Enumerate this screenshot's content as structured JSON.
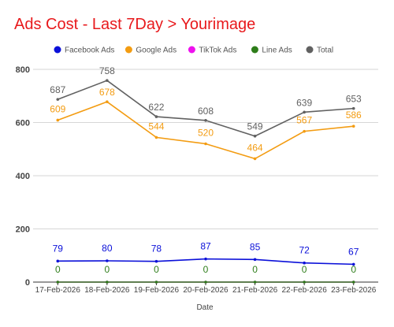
{
  "chart_data": {
    "type": "line",
    "title": "Ads Cost - Last 7Day > Yourimage",
    "xlabel": "Date",
    "ylabel": "",
    "ylim": [
      0,
      800
    ],
    "yticks": [
      0,
      200,
      400,
      600,
      800
    ],
    "grid": true,
    "legend_position": "top",
    "categories": [
      "17-Feb-2026",
      "18-Feb-2026",
      "19-Feb-2026",
      "20-Feb-2026",
      "21-Feb-2026",
      "22-Feb-2026",
      "23-Feb-2026"
    ],
    "series": [
      {
        "name": "Facebook Ads",
        "color": "#0b10d9",
        "values": [
          79,
          80,
          78,
          87,
          85,
          72,
          67
        ]
      },
      {
        "name": "Google Ads",
        "color": "#f39c12",
        "values": [
          609,
          678,
          544,
          520,
          464,
          567,
          586
        ]
      },
      {
        "name": "TikTok Ads",
        "color": "#ee11ee",
        "values": [
          0,
          0,
          0,
          0,
          0,
          0,
          0
        ]
      },
      {
        "name": "Line Ads",
        "color": "#2e7d1a",
        "values": [
          0,
          0,
          0,
          0,
          0,
          0,
          0
        ]
      },
      {
        "name": "Total",
        "color": "#616161",
        "values": [
          687,
          758,
          622,
          608,
          549,
          639,
          653
        ]
      }
    ]
  }
}
